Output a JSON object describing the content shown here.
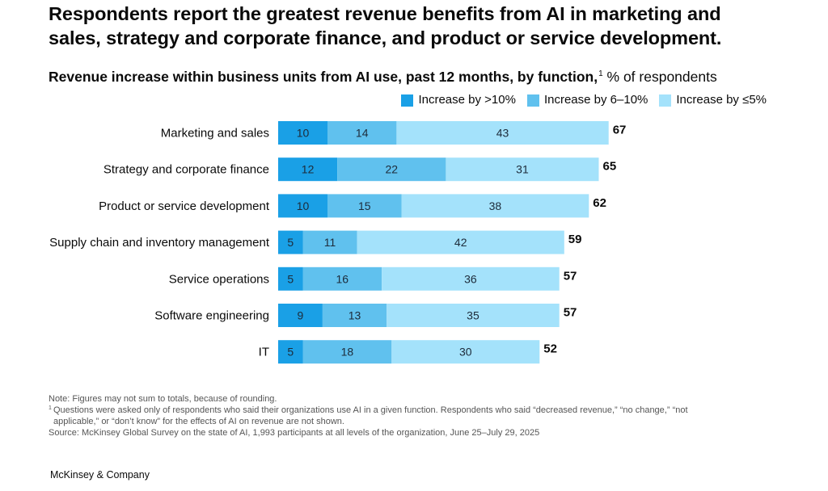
{
  "headline": "Respondents report the greatest revenue benefits from AI in marketing and sales, strategy and corporate finance, and product or service development.",
  "subtitle": {
    "bold": "Revenue increase within business units from AI use, past 12 months, by function,",
    "footnote_mark": "1",
    "unit": "% of respondents"
  },
  "colors": {
    "series1": "#1aa0e6",
    "series2": "#60c1ee",
    "series3": "#a4e2fb",
    "text": "#0a0a0a",
    "bar_text": "#1d2b3a"
  },
  "chart_data": {
    "type": "bar",
    "orientation": "horizontal",
    "stacked": true,
    "title": "Revenue increase within business units from AI use, past 12 months, by function",
    "xlabel": "% of respondents",
    "categories": [
      "Marketing and sales",
      "Strategy and corporate finance",
      "Product or service development",
      "Supply chain and inventory management",
      "Service operations",
      "Software engineering",
      "IT"
    ],
    "series": [
      {
        "name": "Increase by >10%",
        "values": [
          10,
          12,
          10,
          5,
          5,
          9,
          5
        ]
      },
      {
        "name": "Increase by 6–10%",
        "values": [
          14,
          22,
          15,
          11,
          16,
          13,
          18
        ]
      },
      {
        "name": "Increase by ≤5%",
        "values": [
          43,
          31,
          38,
          42,
          36,
          35,
          30
        ]
      }
    ],
    "totals": [
      67,
      65,
      62,
      59,
      57,
      57,
      52
    ],
    "xlim": [
      0,
      70
    ],
    "grid": false,
    "legend": "top-right"
  },
  "notes": {
    "note": "Note: Figures may not sum to totals, because of rounding.",
    "footnote_mark": "1",
    "footnote_line1": "Questions were asked only of respondents who said their organizations use AI in a given function. Respondents who said “decreased revenue,” “no change,” “not",
    "footnote_line2": "applicable,” or “don’t know” for the effects of AI on revenue are not shown.",
    "source": "Source: McKinsey Global Survey on the state of AI, 1,993 participants at all levels of the organization, June 25–July 29, 2025"
  },
  "brand": "McKinsey & Company"
}
